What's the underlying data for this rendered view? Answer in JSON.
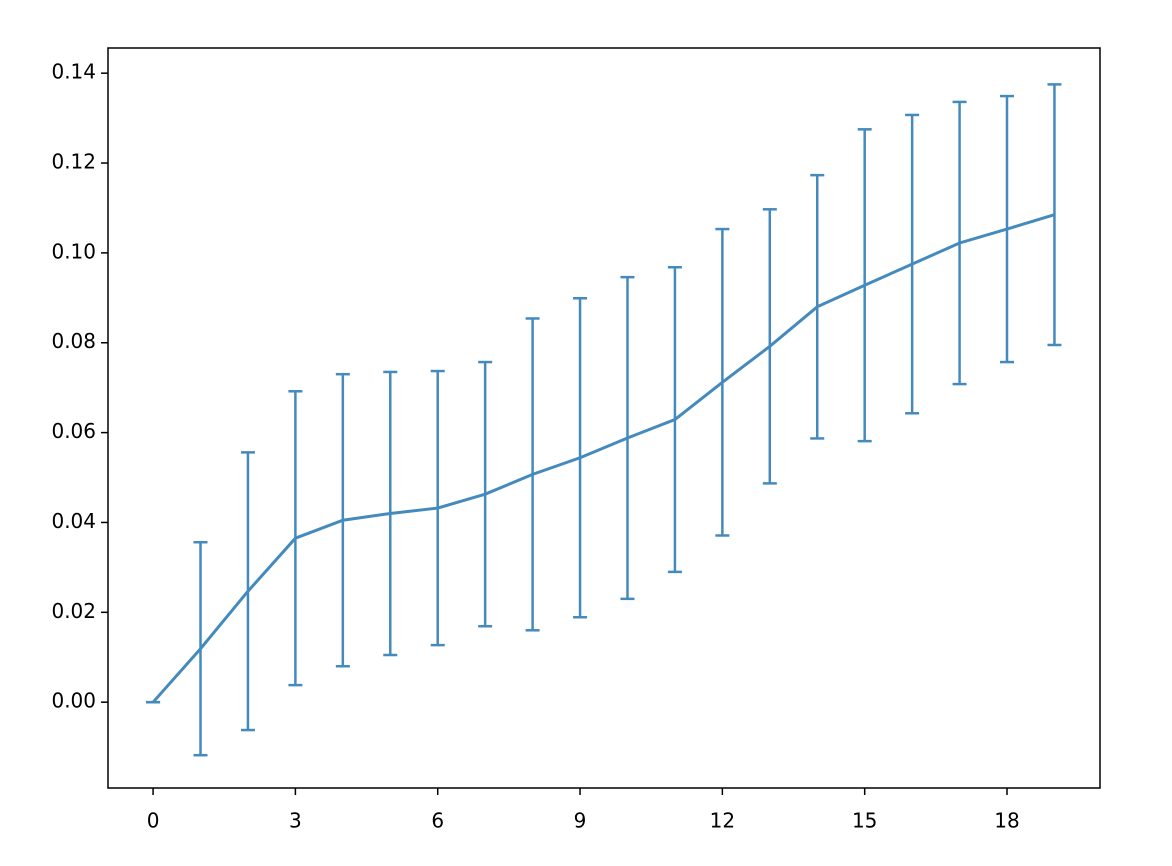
{
  "chart_data": {
    "type": "errorbar-line",
    "x": [
      0,
      1,
      2,
      3,
      4,
      5,
      6,
      7,
      8,
      9,
      10,
      11,
      12,
      13,
      14,
      15,
      16,
      17,
      18,
      19
    ],
    "series": [
      {
        "color": "#448abd",
        "values": [
          0,
          0.0119,
          0.0247,
          0.0365,
          0.0405,
          0.042,
          0.0432,
          0.0463,
          0.0507,
          0.0544,
          0.0588,
          0.0629,
          0.0712,
          0.0792,
          0.088,
          0.0928,
          0.0975,
          0.1022,
          0.1053,
          0.1085
        ],
        "errors": [
          0,
          0.0237,
          0.0309,
          0.0327,
          0.0325,
          0.0315,
          0.0305,
          0.0294,
          0.0347,
          0.0355,
          0.0358,
          0.0339,
          0.0341,
          0.0305,
          0.0293,
          0.0347,
          0.0332,
          0.0314,
          0.0296,
          0.029
        ]
      }
    ],
    "xlim": [
      -0.95,
      19.96
    ],
    "ylim": [
      -0.0191,
      0.1456
    ],
    "xticks": [
      0,
      3,
      6,
      9,
      12,
      15,
      18
    ],
    "yticks": [
      {
        "value": 0,
        "label": "0.00"
      },
      {
        "value": 0.02,
        "label": "0.02"
      },
      {
        "value": 0.04,
        "label": "0.04"
      },
      {
        "value": 0.06,
        "label": "0.06"
      },
      {
        "value": 0.08,
        "label": "0.08"
      },
      {
        "value": 0.1,
        "label": "0.10"
      },
      {
        "value": 0.12,
        "label": "0.12"
      },
      {
        "value": 0.14,
        "label": "0.14"
      }
    ],
    "grid": false
  }
}
